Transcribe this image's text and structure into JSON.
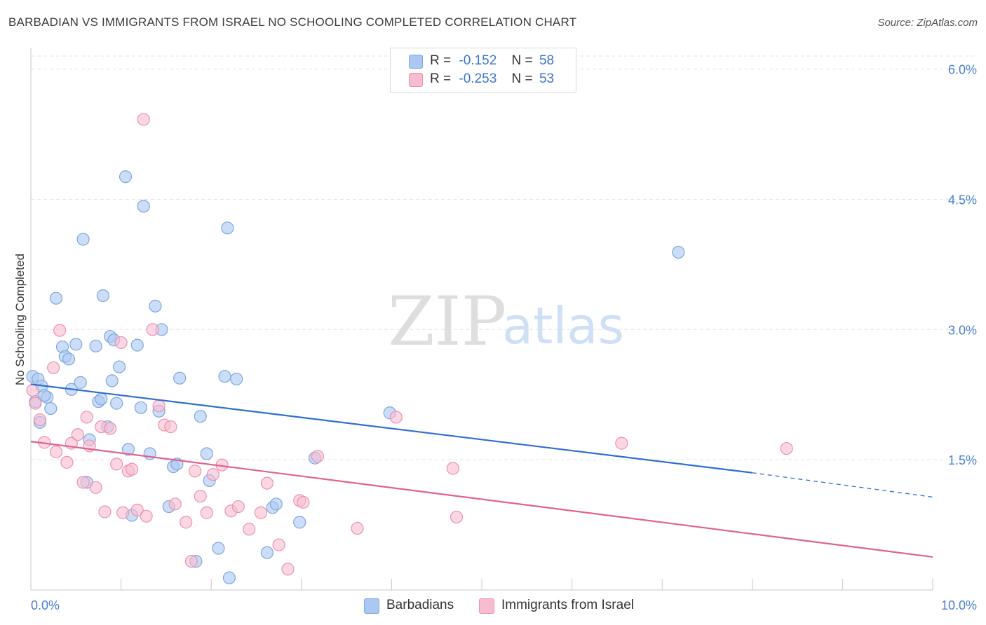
{
  "title": "BARBADIAN VS IMMIGRANTS FROM ISRAEL NO SCHOOLING COMPLETED CORRELATION CHART",
  "source": "Source: ZipAtlas.com",
  "watermark": {
    "zip": "ZIP",
    "atlas": "atlas"
  },
  "colors": {
    "blue_fill": "#aac8f2",
    "blue_stroke": "#7ea7df",
    "blue_line": "#2e6fd0",
    "pink_fill": "#f8bcd0",
    "pink_stroke": "#ee91ad",
    "pink_line": "#e0628f",
    "axis_label": "#4a7fd0",
    "grid": "#e3e3e3"
  },
  "legend": {
    "rows": [
      {
        "r_label": "R =",
        "r_value": "-0.152",
        "n_label": "N =",
        "n_value": "58"
      },
      {
        "r_label": "R =",
        "r_value": "-0.253",
        "n_label": "N =",
        "n_value": "53"
      }
    ]
  },
  "bottom_legend": {
    "series1": "Barbadians",
    "series2": "Immigrants from Israel"
  },
  "chart_data": {
    "type": "scatter",
    "ylabel": "No Schooling Completed",
    "xlabel": "",
    "xlim": [
      0,
      10
    ],
    "ylim": [
      0,
      6.15
    ],
    "x_tick_labels": [
      "0.0%",
      "10.0%"
    ],
    "y_ticks": [
      1.5,
      3.0,
      4.5,
      6.0
    ],
    "y_tick_labels": [
      "1.5%",
      "3.0%",
      "4.5%",
      "6.0%"
    ],
    "grid": true,
    "legend_placement": "top-center",
    "series": [
      {
        "name": "Barbadians",
        "trend": {
          "x0": 0.0,
          "y0": 2.37,
          "x1": 8.0,
          "y1": 1.35,
          "dash_to_x": 10.0,
          "dash_to_y": 1.07
        },
        "points": [
          [
            0.02,
            2.46
          ],
          [
            0.08,
            2.43
          ],
          [
            0.12,
            2.35
          ],
          [
            0.18,
            2.22
          ],
          [
            0.22,
            2.09
          ],
          [
            0.35,
            2.8
          ],
          [
            0.38,
            2.69
          ],
          [
            0.42,
            2.66
          ],
          [
            0.45,
            2.31
          ],
          [
            0.28,
            3.36
          ],
          [
            0.58,
            4.04
          ],
          [
            0.72,
            2.81
          ],
          [
            0.75,
            2.17
          ],
          [
            0.78,
            2.2
          ],
          [
            0.8,
            3.39
          ],
          [
            0.85,
            1.88
          ],
          [
            0.9,
            2.41
          ],
          [
            0.88,
            2.92
          ],
          [
            0.92,
            2.88
          ],
          [
            0.95,
            2.15
          ],
          [
            0.98,
            2.57
          ],
          [
            1.05,
            4.76
          ],
          [
            1.08,
            1.62
          ],
          [
            1.12,
            0.86
          ],
          [
            1.18,
            2.82
          ],
          [
            1.22,
            2.1
          ],
          [
            1.25,
            4.42
          ],
          [
            1.32,
            1.57
          ],
          [
            1.38,
            3.27
          ],
          [
            1.42,
            2.06
          ],
          [
            1.45,
            3.0
          ],
          [
            1.53,
            0.96
          ],
          [
            1.58,
            1.42
          ],
          [
            1.62,
            1.45
          ],
          [
            1.65,
            2.44
          ],
          [
            1.83,
            0.33
          ],
          [
            1.88,
            2.0
          ],
          [
            1.95,
            1.57
          ],
          [
            1.98,
            1.26
          ],
          [
            2.08,
            0.48
          ],
          [
            2.15,
            2.46
          ],
          [
            2.18,
            4.17
          ],
          [
            2.2,
            0.14
          ],
          [
            2.28,
            2.43
          ],
          [
            2.62,
            0.43
          ],
          [
            2.68,
            0.95
          ],
          [
            2.72,
            0.99
          ],
          [
            2.98,
            0.78
          ],
          [
            3.15,
            1.52
          ],
          [
            3.98,
            2.04
          ],
          [
            7.18,
            3.89
          ],
          [
            0.65,
            1.73
          ],
          [
            0.62,
            1.24
          ],
          [
            0.05,
            2.17
          ],
          [
            0.1,
            1.93
          ],
          [
            0.15,
            2.24
          ],
          [
            0.5,
            2.83
          ],
          [
            0.55,
            2.39
          ]
        ]
      },
      {
        "name": "Immigrants from Israel",
        "trend": {
          "x0": 0.0,
          "y0": 1.71,
          "x1": 10.0,
          "y1": 0.38
        },
        "points": [
          [
            0.02,
            2.3
          ],
          [
            0.05,
            2.15
          ],
          [
            0.1,
            1.96
          ],
          [
            0.15,
            1.7
          ],
          [
            0.25,
            2.56
          ],
          [
            0.28,
            1.59
          ],
          [
            0.32,
            2.99
          ],
          [
            0.4,
            1.47
          ],
          [
            0.45,
            1.69
          ],
          [
            0.52,
            1.79
          ],
          [
            0.58,
            1.24
          ],
          [
            0.62,
            1.99
          ],
          [
            0.65,
            1.66
          ],
          [
            0.72,
            1.18
          ],
          [
            0.78,
            1.88
          ],
          [
            0.82,
            0.9
          ],
          [
            0.88,
            1.86
          ],
          [
            0.95,
            1.45
          ],
          [
            1.0,
            2.85
          ],
          [
            1.02,
            0.89
          ],
          [
            1.08,
            1.37
          ],
          [
            1.12,
            1.39
          ],
          [
            1.18,
            0.92
          ],
          [
            1.25,
            5.42
          ],
          [
            1.28,
            0.85
          ],
          [
            1.35,
            3.0
          ],
          [
            1.42,
            2.12
          ],
          [
            1.48,
            1.9
          ],
          [
            1.55,
            1.88
          ],
          [
            1.6,
            0.99
          ],
          [
            1.72,
            0.78
          ],
          [
            1.78,
            0.33
          ],
          [
            1.82,
            1.37
          ],
          [
            1.88,
            1.08
          ],
          [
            1.95,
            0.89
          ],
          [
            2.02,
            1.33
          ],
          [
            2.12,
            1.44
          ],
          [
            2.22,
            0.91
          ],
          [
            2.3,
            0.96
          ],
          [
            2.42,
            0.7
          ],
          [
            2.55,
            0.89
          ],
          [
            2.62,
            1.23
          ],
          [
            2.75,
            0.52
          ],
          [
            2.85,
            0.24
          ],
          [
            2.98,
            1.03
          ],
          [
            3.02,
            1.01
          ],
          [
            3.18,
            1.54
          ],
          [
            3.62,
            0.71
          ],
          [
            4.05,
            1.99
          ],
          [
            4.68,
            1.4
          ],
          [
            4.72,
            0.84
          ],
          [
            6.55,
            1.69
          ],
          [
            8.38,
            1.63
          ]
        ]
      }
    ]
  }
}
